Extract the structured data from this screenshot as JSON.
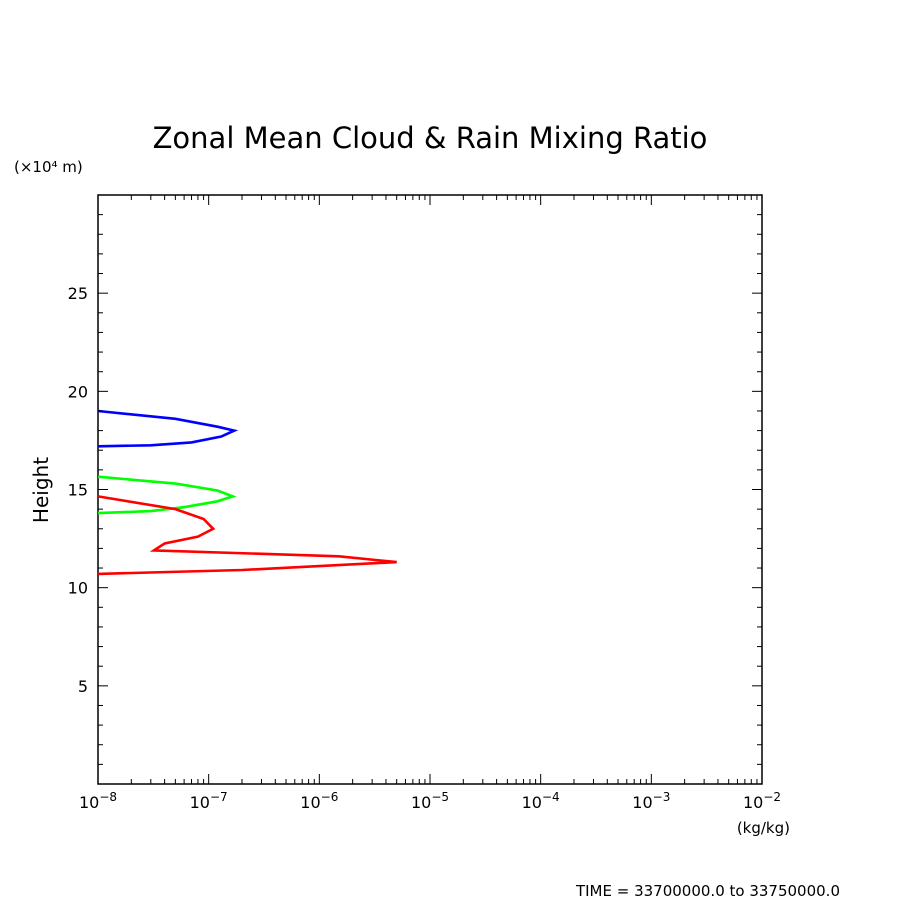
{
  "chart_data": {
    "type": "line",
    "title": "Zonal Mean Cloud & Rain Mixing Ratio",
    "ylabel": "Height",
    "y_unit": "(×10⁴ m)",
    "x_unit": "(kg/kg)",
    "xscale": "log",
    "xlim": [
      1e-08,
      0.01
    ],
    "ylim": [
      0,
      30
    ],
    "y_ticks": [
      5,
      10,
      15,
      20,
      25
    ],
    "x_ticks": [
      {
        "base": "10",
        "exp": "−8"
      },
      {
        "base": "10",
        "exp": "−7"
      },
      {
        "base": "10",
        "exp": "−6"
      },
      {
        "base": "10",
        "exp": "−5"
      },
      {
        "base": "10",
        "exp": "−4"
      },
      {
        "base": "10",
        "exp": "−3"
      },
      {
        "base": "10",
        "exp": "−2"
      }
    ],
    "grid": false,
    "series": [
      {
        "color": "#0000ff",
        "points": [
          [
            1e-08,
            19.0
          ],
          [
            5e-08,
            18.6
          ],
          [
            1.2e-07,
            18.2
          ],
          [
            1.7e-07,
            18.0
          ],
          [
            1.3e-07,
            17.7
          ],
          [
            7e-08,
            17.4
          ],
          [
            3e-08,
            17.25
          ],
          [
            1e-08,
            17.2
          ]
        ]
      },
      {
        "color": "#00ff00",
        "points": [
          [
            1e-08,
            15.65
          ],
          [
            5e-08,
            15.3
          ],
          [
            1.2e-07,
            14.95
          ],
          [
            1.65e-07,
            14.65
          ],
          [
            1.2e-07,
            14.4
          ],
          [
            6e-08,
            14.1
          ],
          [
            3e-08,
            13.9
          ],
          [
            1e-08,
            13.8
          ]
        ]
      },
      {
        "color": "#ff0000",
        "points": [
          [
            1e-08,
            14.65
          ],
          [
            5e-08,
            14.0
          ],
          [
            9e-08,
            13.5
          ],
          [
            1.1e-07,
            13.0
          ],
          [
            8e-08,
            12.6
          ],
          [
            4e-08,
            12.25
          ],
          [
            3.2e-08,
            11.9
          ],
          [
            1.5e-06,
            11.6
          ],
          [
            5e-06,
            11.3
          ],
          [
            2e-07,
            10.9
          ],
          [
            1e-08,
            10.7
          ]
        ]
      }
    ]
  },
  "footer": {
    "time_label": "TIME = 33700000.0 to 33750000.0"
  }
}
